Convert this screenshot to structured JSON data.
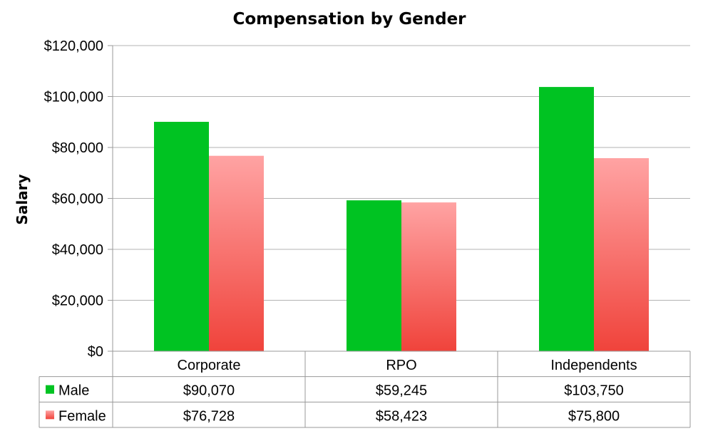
{
  "chart_data": {
    "type": "bar",
    "title": "Compensation by Gender",
    "xlabel": "",
    "ylabel": "Salary",
    "ylim": [
      0,
      120000
    ],
    "ytick_values": [
      0,
      20000,
      40000,
      60000,
      80000,
      100000,
      120000
    ],
    "ytick_labels": [
      "$0",
      "$20,000",
      "$40,000",
      "$60,000",
      "$80,000",
      "$100,000",
      "$120,000"
    ],
    "grid": true,
    "legend": "data-table-left",
    "categories": [
      "Corporate",
      "RPO",
      "Independents"
    ],
    "series": [
      {
        "name": "Male",
        "values": [
          90070,
          59245,
          103750
        ],
        "labels": [
          "$90,070",
          "$59,245",
          "$103,750"
        ],
        "color": "#00c322"
      },
      {
        "name": "Female",
        "values": [
          76728,
          58423,
          75800
        ],
        "labels": [
          "$76,728",
          "$58,423",
          "$75,800"
        ],
        "color": "#f0433b",
        "color_light": "#ffa3a3"
      }
    ]
  }
}
